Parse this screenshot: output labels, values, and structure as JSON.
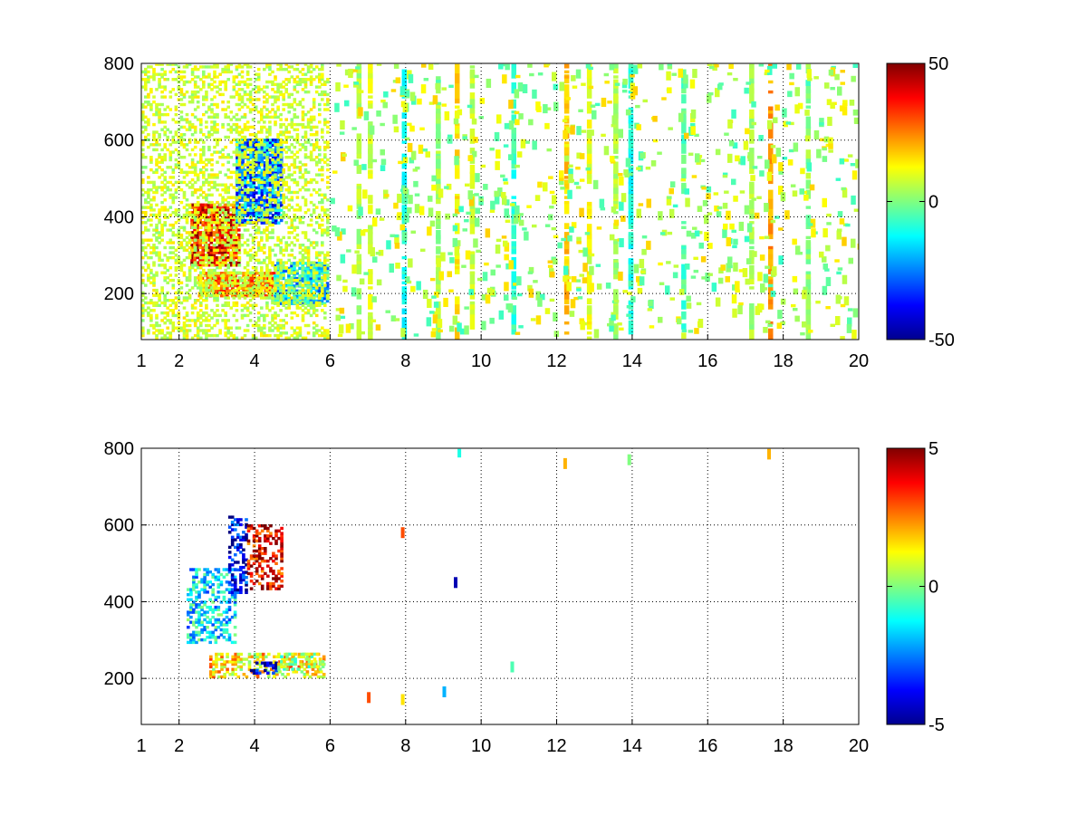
{
  "chart_data": [
    {
      "type": "heatmap",
      "title": "",
      "xlabel": "",
      "ylabel": "",
      "xlim": [
        1,
        20
      ],
      "ylim": [
        80,
        800
      ],
      "grid": true,
      "x_ticks": [
        1,
        2,
        4,
        6,
        8,
        10,
        12,
        14,
        16,
        18,
        20
      ],
      "y_ticks": [
        200,
        400,
        600,
        800
      ],
      "colorbar": {
        "colormap": "jet",
        "range": [
          -50,
          50
        ],
        "ticks": [
          50,
          0,
          -50
        ]
      },
      "features": [
        {
          "x": [
            2.3,
            3.6
          ],
          "y": [
            270,
            430
          ],
          "value": 35
        },
        {
          "x": [
            3.5,
            4.7
          ],
          "y": [
            380,
            600
          ],
          "value": -25
        },
        {
          "x": [
            2.5,
            4.5
          ],
          "y": [
            190,
            250
          ],
          "value": 20
        },
        {
          "x": [
            4.5,
            5.9
          ],
          "y": [
            170,
            280
          ],
          "value": -15
        },
        {
          "x": [
            1,
            5.9
          ],
          "y": [
            80,
            800
          ],
          "value": 8
        }
      ],
      "columns": [
        6.7,
        7.0,
        7.9,
        8.8,
        9.3,
        9.7,
        10.8,
        12.2,
        12.8,
        13.5,
        13.9,
        15.3,
        17.1,
        17.6,
        18.6
      ],
      "column_values": [
        5,
        8,
        -12,
        3,
        15,
        6,
        -8,
        18,
        10,
        5,
        -10,
        -5,
        4,
        22,
        2
      ]
    },
    {
      "type": "heatmap",
      "title": "",
      "xlabel": "",
      "ylabel": "",
      "xlim": [
        1,
        20
      ],
      "ylim": [
        80,
        800
      ],
      "grid": true,
      "x_ticks": [
        1,
        2,
        4,
        6,
        8,
        10,
        12,
        14,
        16,
        18,
        20
      ],
      "y_ticks": [
        200,
        400,
        600,
        800
      ],
      "colorbar": {
        "colormap": "jet",
        "range": [
          -5,
          5
        ],
        "ticks": [
          5,
          0,
          -5
        ]
      },
      "features": [
        {
          "x": [
            2.2,
            3.5
          ],
          "y": [
            290,
            480
          ],
          "value": -1.5
        },
        {
          "x": [
            3.3,
            3.8
          ],
          "y": [
            420,
            620
          ],
          "value": -4
        },
        {
          "x": [
            3.8,
            4.7
          ],
          "y": [
            430,
            600
          ],
          "value": 4
        },
        {
          "x": [
            2.8,
            5.8
          ],
          "y": [
            200,
            260
          ],
          "value": 1.5
        },
        {
          "x": [
            3.8,
            4.6
          ],
          "y": [
            210,
            240
          ],
          "value": -4.5
        },
        {
          "x": [
            4.6,
            5.8
          ],
          "y": [
            220,
            265
          ],
          "value": 0.5
        }
      ],
      "points": [
        {
          "x": 7.0,
          "y": 150,
          "value": 3
        },
        {
          "x": 7.9,
          "y": 145,
          "value": 1.5
        },
        {
          "x": 7.9,
          "y": 580,
          "value": 3
        },
        {
          "x": 9.0,
          "y": 165,
          "value": -2
        },
        {
          "x": 9.3,
          "y": 450,
          "value": -4.5
        },
        {
          "x": 9.4,
          "y": 790,
          "value": -1
        },
        {
          "x": 10.8,
          "y": 230,
          "value": -0.5
        },
        {
          "x": 12.2,
          "y": 760,
          "value": 2
        },
        {
          "x": 13.9,
          "y": 770,
          "value": 0
        },
        {
          "x": 17.6,
          "y": 785,
          "value": 2
        }
      ]
    }
  ]
}
